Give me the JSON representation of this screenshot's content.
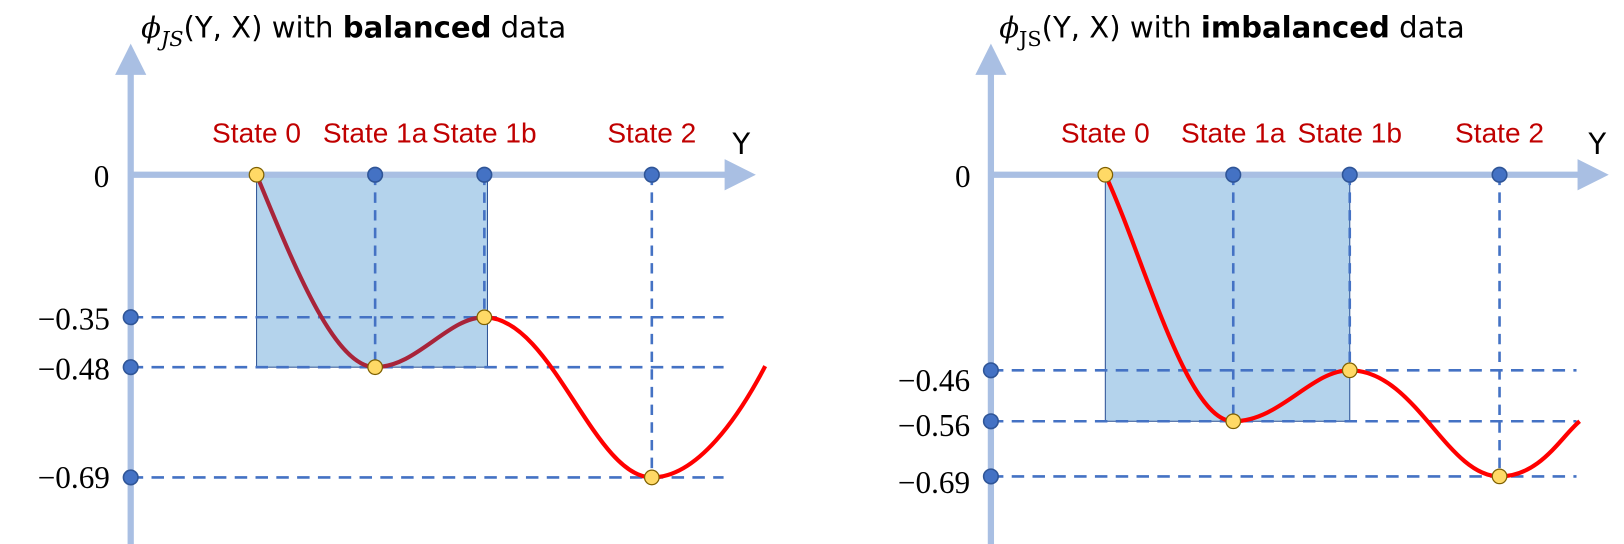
{
  "panels": [
    {
      "title": {
        "symbol": "ϕ",
        "subscript": "JS",
        "middle": "(Y, X) with ",
        "bold": "balanced",
        "suffix": " data"
      },
      "axis_label": "Y",
      "zero_label": "0",
      "states": [
        "State 0",
        "State 1a",
        "State 1b",
        "State 2"
      ],
      "levels": [
        "−0.35",
        "−0.48",
        "−0.69"
      ]
    },
    {
      "title": {
        "symbol": "ϕ",
        "subscript": "JS",
        "middle": "(Y, X) with ",
        "bold": "imbalanced",
        "suffix": " data"
      },
      "axis_label": "Y",
      "zero_label": "0",
      "states": [
        "State 0",
        "State 1a",
        "State 1b",
        "State 2"
      ],
      "levels": [
        "−0.46",
        "−0.56",
        "−0.69"
      ]
    }
  ]
}
